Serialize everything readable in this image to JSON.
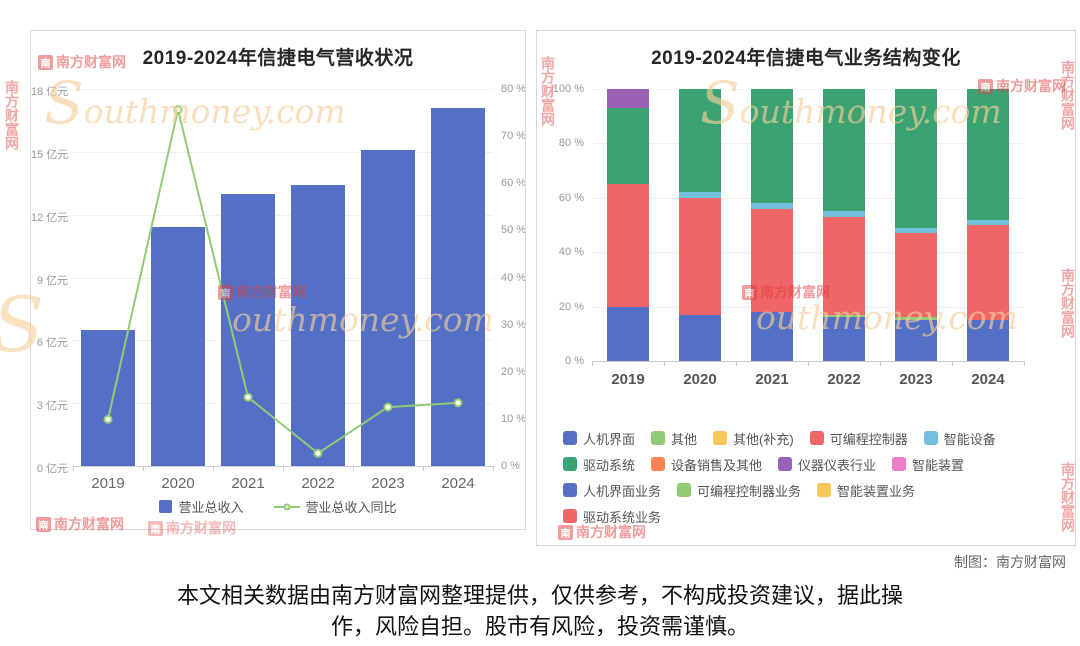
{
  "watermark": {
    "logo_box": "南",
    "logo_text": "南方财富网",
    "script_initial": "S",
    "script_rest": "outhmoney.com"
  },
  "credit": "制图：南方财富网",
  "disclaimer": {
    "line1": "本文相关数据由南方财富网整理提供，仅供参考，不构成投资建议，据此操",
    "line2": "作，风险自担。股市有风险，投资需谨慎。"
  },
  "chart_data": [
    {
      "type": "bar",
      "title": "2019-2024年信捷电气营收状况",
      "categories": [
        "2019",
        "2020",
        "2021",
        "2022",
        "2023",
        "2024"
      ],
      "series": [
        {
          "name": "营业总收入",
          "type": "bar",
          "color": "#5470c6",
          "axis": "left",
          "unit": "亿元",
          "values": [
            6.5,
            11.4,
            13.0,
            13.4,
            15.1,
            17.1
          ]
        },
        {
          "name": "营业总收入同比",
          "type": "line",
          "color": "#91cc75",
          "axis": "right",
          "unit": "%",
          "values": [
            9.9,
            75.6,
            14.6,
            2.7,
            12.5,
            13.4
          ]
        }
      ],
      "left_axis": {
        "min": 0,
        "max": 18,
        "step": 3,
        "unit": "亿元",
        "tick_labels": [
          "0 亿元",
          "3 亿元",
          "6 亿元",
          "9 亿元",
          "12 亿元",
          "15 亿元",
          "18 亿元"
        ]
      },
      "right_axis": {
        "min": 0,
        "max": 80,
        "step": 10,
        "unit": "%",
        "tick_labels": [
          "0 %",
          "10 %",
          "20 %",
          "30 %",
          "40 %",
          "50 %",
          "60 %",
          "70 %",
          "80 %"
        ]
      },
      "legend": [
        {
          "label": "营业总收入",
          "marker": "bar",
          "color": "#5470c6"
        },
        {
          "label": "营业总收入同比",
          "marker": "line",
          "color": "#91cc75"
        }
      ],
      "grid": true,
      "legend_position": "bottom"
    },
    {
      "type": "stacked-bar",
      "title": "2019-2024年信捷电气业务结构变化",
      "categories": [
        "2019",
        "2020",
        "2021",
        "2022",
        "2023",
        "2024"
      ],
      "y_axis": {
        "min": 0,
        "max": 100,
        "step": 20,
        "unit": "%",
        "tick_labels": [
          "0 %",
          "20 %",
          "40 %",
          "60 %",
          "80 %",
          "100 %"
        ]
      },
      "stacks": [
        [
          {
            "name": "人机界面",
            "color": "#5470c6",
            "value": 20
          },
          {
            "name": "可编程控制器",
            "color": "#ee6666",
            "value": 45
          },
          {
            "name": "驱动系统",
            "color": "#3ba272",
            "value": 28
          },
          {
            "name": "仪器仪表行业",
            "color": "#9a60b4",
            "value": 7
          }
        ],
        [
          {
            "name": "人机界面",
            "color": "#5470c6",
            "value": 17
          },
          {
            "name": "可编程控制器",
            "color": "#ee6666",
            "value": 43
          },
          {
            "name": "智能设备",
            "color": "#73c0de",
            "value": 2
          },
          {
            "name": "驱动系统",
            "color": "#3ba272",
            "value": 38
          }
        ],
        [
          {
            "name": "人机界面",
            "color": "#5470c6",
            "value": 18
          },
          {
            "name": "可编程控制器",
            "color": "#ee6666",
            "value": 38
          },
          {
            "name": "智能设备",
            "color": "#73c0de",
            "value": 2
          },
          {
            "name": "驱动系统",
            "color": "#3ba272",
            "value": 42
          }
        ],
        [
          {
            "name": "人机界面",
            "color": "#5470c6",
            "value": 16
          },
          {
            "name": "其他",
            "color": "#91cc75",
            "value": 1
          },
          {
            "name": "可编程控制器",
            "color": "#ee6666",
            "value": 36
          },
          {
            "name": "智能设备",
            "color": "#73c0de",
            "value": 2
          },
          {
            "name": "驱动系统",
            "color": "#3ba272",
            "value": 45
          }
        ],
        [
          {
            "name": "人机界面",
            "color": "#5470c6",
            "value": 15
          },
          {
            "name": "其他",
            "color": "#91cc75",
            "value": 1
          },
          {
            "name": "可编程控制器",
            "color": "#ee6666",
            "value": 31
          },
          {
            "name": "智能设备",
            "color": "#73c0de",
            "value": 2
          },
          {
            "name": "驱动系统",
            "color": "#3ba272",
            "value": 51
          }
        ],
        [
          {
            "name": "人机界面",
            "color": "#5470c6",
            "value": 15
          },
          {
            "name": "可编程控制器",
            "color": "#ee6666",
            "value": 35
          },
          {
            "name": "智能设备",
            "color": "#73c0de",
            "value": 2
          },
          {
            "name": "驱动系统",
            "color": "#3ba272",
            "value": 48
          }
        ]
      ],
      "legend_rows": [
        [
          {
            "label": "人机界面",
            "color": "#5470c6"
          },
          {
            "label": "其他",
            "color": "#91cc75"
          },
          {
            "label": "其他(补充)",
            "color": "#fac858"
          },
          {
            "label": "可编程控制器",
            "color": "#ee6666"
          },
          {
            "label": "智能设备",
            "color": "#73c0de"
          }
        ],
        [
          {
            "label": "驱动系统",
            "color": "#3ba272"
          },
          {
            "label": "设备销售及其他",
            "color": "#fc8452"
          },
          {
            "label": "仪器仪表行业",
            "color": "#9a60b4"
          },
          {
            "label": "智能装置",
            "color": "#ea7ccc"
          }
        ],
        [
          {
            "label": "人机界面业务",
            "color": "#5470c6"
          },
          {
            "label": "可编程控制器业务",
            "color": "#91cc75"
          },
          {
            "label": "智能装置业务",
            "color": "#fac858"
          }
        ],
        [
          {
            "label": "驱动系统业务",
            "color": "#ee6666"
          }
        ]
      ],
      "grid": true,
      "legend_position": "bottom"
    }
  ]
}
